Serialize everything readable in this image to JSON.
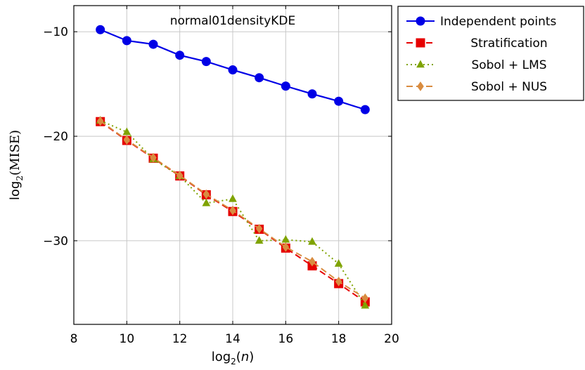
{
  "chart_data": {
    "type": "line",
    "title": "normal01densityKDE",
    "xlabel": "log2(n)",
    "ylabel": "log2(MISE)",
    "xlim": [
      8,
      20
    ],
    "ylim": [
      -38,
      -7.5
    ],
    "xticks": [
      8,
      10,
      12,
      14,
      16,
      18,
      20
    ],
    "yticks": [
      -30,
      -20,
      -10
    ],
    "xtick_labels": [
      "8",
      "10",
      "12",
      "14",
      "16",
      "18",
      "20"
    ],
    "ytick_labels": [
      "−30",
      "−20",
      "−10"
    ],
    "grid": true,
    "legend_position": "outside-top-right",
    "x": [
      9,
      10,
      11,
      12,
      13,
      14,
      15,
      16,
      17,
      18,
      19
    ],
    "series": [
      {
        "name": "Independent points",
        "color": "#0000e6",
        "style": "solid",
        "marker": "circle",
        "values": [
          -9.8,
          -10.85,
          -11.2,
          -12.25,
          -12.85,
          -13.65,
          -14.4,
          -15.2,
          -15.95,
          -16.65,
          -17.45
        ]
      },
      {
        "name": "Stratification",
        "color": "#e60000",
        "style": "dashed",
        "marker": "square",
        "values": [
          -18.6,
          -20.4,
          -22.1,
          -23.8,
          -25.6,
          -27.2,
          -28.9,
          -30.7,
          -32.4,
          -34.1,
          -35.85
        ]
      },
      {
        "name": "Sobol + LMS",
        "color": "#7fa300",
        "style": "dotted",
        "marker": "triangle",
        "values": [
          -18.5,
          -19.6,
          -22.2,
          -23.8,
          -26.4,
          -26.0,
          -30.0,
          -29.9,
          -30.1,
          -32.2,
          -36.2
        ]
      },
      {
        "name": "Sobol + NUS",
        "color": "#d98c40",
        "style": "dashed",
        "marker": "diamond",
        "values": [
          -18.55,
          -20.35,
          -22.05,
          -23.75,
          -25.55,
          -27.1,
          -28.85,
          -30.6,
          -32.0,
          -33.9,
          -35.5
        ]
      }
    ]
  }
}
